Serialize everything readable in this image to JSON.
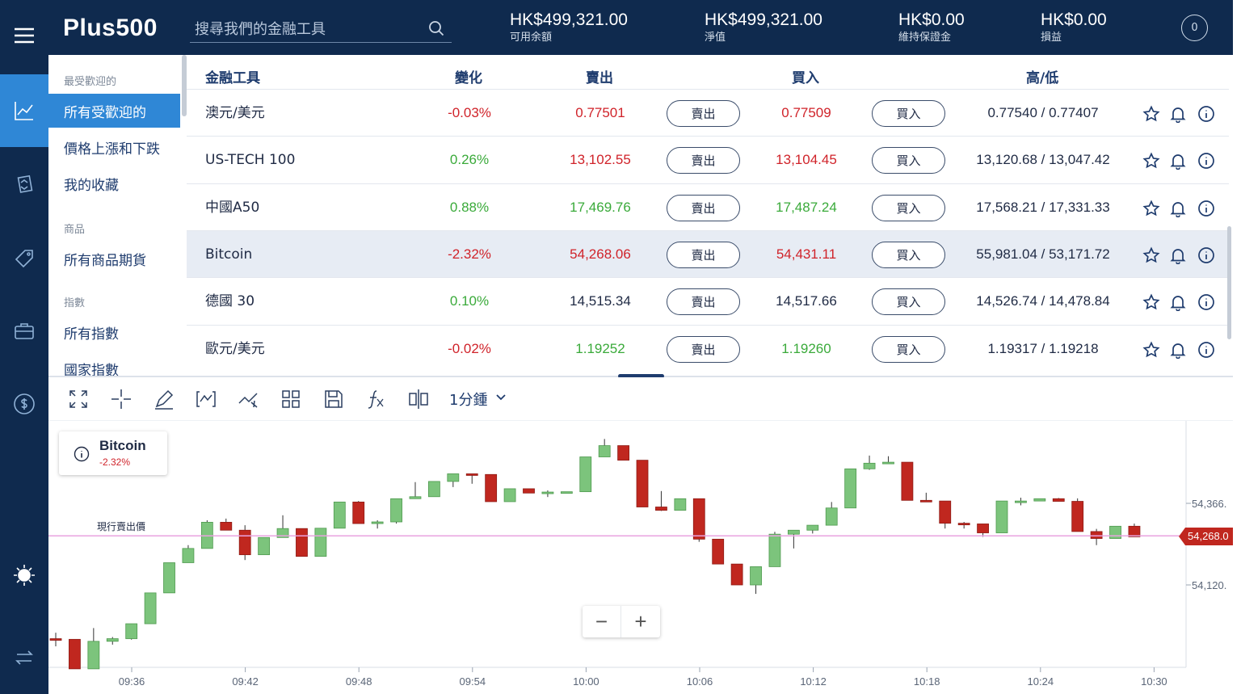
{
  "header": {
    "logo": "Plus500",
    "search_placeholder": "搜尋我們的金融工具",
    "stats": [
      {
        "value": "HK$499,321.00",
        "label": "可用余額"
      },
      {
        "value": "HK$499,321.00",
        "label": "淨值"
      },
      {
        "value": "HK$0.00",
        "label": "維持保證金"
      },
      {
        "value": "HK$0.00",
        "label": "損益"
      }
    ],
    "notification_count": "0"
  },
  "rail": {
    "icons": [
      "menu-icon",
      "chart-icon",
      "swap-doc-icon",
      "tag-icon",
      "briefcase-icon",
      "dollar-icon",
      "brightness-icon",
      "transfer-icon"
    ]
  },
  "categories": {
    "groups": [
      {
        "heading": "最受歡迎的",
        "items": [
          "所有受歡迎的",
          "價格上漲和下跌",
          "我的收藏"
        ]
      },
      {
        "heading": "商品",
        "items": [
          "所有商品期貨"
        ]
      },
      {
        "heading": "指數",
        "items": [
          "所有指數",
          "國家指數"
        ]
      }
    ],
    "active": "所有受歡迎的"
  },
  "table": {
    "headers": {
      "instrument": "金融工具",
      "change": "變化",
      "sell": "賣出",
      "buy": "買入",
      "hilo": "高/低"
    },
    "sell_button": "賣出",
    "buy_button": "買入",
    "rows": [
      {
        "name": "澳元/美元",
        "change": "-0.03%",
        "sell": "0.77501",
        "buy": "0.77509",
        "hilo": "0.77540 / 0.77407",
        "change_color": "red",
        "sell_color": "red",
        "buy_color": "red"
      },
      {
        "name": "US-TECH 100",
        "change": "0.26%",
        "sell": "13,102.55",
        "buy": "13,104.45",
        "hilo": "13,120.68 / 13,047.42",
        "change_color": "green",
        "sell_color": "red",
        "buy_color": "red"
      },
      {
        "name": "中國A50",
        "change": "0.88%",
        "sell": "17,469.76",
        "buy": "17,487.24",
        "hilo": "17,568.21 / 17,331.33",
        "change_color": "green",
        "sell_color": "green",
        "buy_color": "green"
      },
      {
        "name": "Bitcoin",
        "change": "-2.32%",
        "sell": "54,268.06",
        "buy": "54,431.11",
        "hilo": "55,981.04 / 53,171.72",
        "change_color": "red",
        "sell_color": "red",
        "buy_color": "red",
        "highlight": true
      },
      {
        "name": "德國 30",
        "change": "0.10%",
        "sell": "14,515.34",
        "buy": "14,517.66",
        "hilo": "14,526.74 / 14,478.84",
        "change_color": "green",
        "sell_color": "dark",
        "buy_color": "dark"
      },
      {
        "name": "歐元/美元",
        "change": "-0.02%",
        "sell": "1.19252",
        "buy": "1.19260",
        "hilo": "1.19317 / 1.19218",
        "change_color": "red",
        "sell_color": "green",
        "buy_color": "green"
      }
    ]
  },
  "toolbar": {
    "timeframe": "1分鍾",
    "tools": [
      "fullscreen-icon",
      "crosshair-icon",
      "draw-icon",
      "indicator-bracket-icon",
      "trend-icon",
      "layout-grid-icon",
      "save-icon",
      "function-icon",
      "compare-icon"
    ]
  },
  "chart_legend": {
    "name": "Bitcoin",
    "change": "-2.32%"
  },
  "current_sell_label": "現行賣出價",
  "current_price_tag": "54,268.0",
  "zoom": {
    "minus": "−",
    "plus": "+"
  },
  "colors": {
    "up": "#7cc47c",
    "down": "#c0271f",
    "price_line": "#e9a3e0",
    "accent": "#2f87d6",
    "navy": "#0f2a4e"
  },
  "chart_data": {
    "type": "candlestick",
    "title": "",
    "symbol": "Bitcoin",
    "interval": "1分鍾",
    "x_ticks": [
      "09:36",
      "09:42",
      "09:48",
      "09:54",
      "10:00",
      "10:06",
      "10:12",
      "10:18",
      "10:24",
      "10:30"
    ],
    "y_ticks": [
      "54,366.",
      "54,120."
    ],
    "y_tick_values": [
      54366,
      54120
    ],
    "current_price": 54268,
    "start_minute_label": "09:33",
    "minutes_per_tick": 6,
    "candles": [
      [
        53958,
        53956,
        53976,
        53935
      ],
      [
        53956,
        53867,
        53956,
        53867
      ],
      [
        53867,
        53950,
        53990,
        53867
      ],
      [
        53950,
        53958,
        53963,
        53940
      ],
      [
        53958,
        54003,
        54003,
        53955
      ],
      [
        54003,
        54096,
        54096,
        54003
      ],
      [
        54096,
        54187,
        54187,
        54096
      ],
      [
        54187,
        54230,
        54240,
        54187
      ],
      [
        54230,
        54309,
        54315,
        54230
      ],
      [
        54309,
        54285,
        54320,
        54285
      ],
      [
        54285,
        54211,
        54300,
        54195
      ],
      [
        54211,
        54263,
        54263,
        54211
      ],
      [
        54263,
        54290,
        54330,
        54263
      ],
      [
        54290,
        54206,
        54290,
        54206
      ],
      [
        54206,
        54291,
        54291,
        54206
      ],
      [
        54291,
        54370,
        54370,
        54291
      ],
      [
        54370,
        54305,
        54373,
        54305
      ],
      [
        54305,
        54310,
        54315,
        54290
      ],
      [
        54310,
        54380,
        54380,
        54305
      ],
      [
        54380,
        54386,
        54430,
        54380
      ],
      [
        54386,
        54432,
        54432,
        54386
      ],
      [
        54432,
        54455,
        54455,
        54415
      ],
      [
        54455,
        54453,
        54455,
        54425
      ],
      [
        54453,
        54371,
        54453,
        54371
      ],
      [
        54371,
        54410,
        54410,
        54371
      ],
      [
        54410,
        54397,
        54403,
        54397
      ],
      [
        54397,
        54400,
        54405,
        54385
      ],
      [
        54400,
        54401,
        54401,
        54401
      ],
      [
        54401,
        54506,
        54506,
        54401
      ],
      [
        54506,
        54540,
        54560,
        54506
      ],
      [
        54540,
        54496,
        54496,
        54496
      ],
      [
        54496,
        54355,
        54496,
        54355
      ],
      [
        54355,
        54345,
        54403,
        54343
      ],
      [
        54345,
        54380,
        54380,
        54345
      ],
      [
        54380,
        54258,
        54380,
        54250
      ],
      [
        54258,
        54183,
        54258,
        54183
      ],
      [
        54183,
        54120,
        54183,
        54120
      ],
      [
        54120,
        54175,
        54175,
        54093
      ],
      [
        54175,
        54273,
        54280,
        54175
      ],
      [
        54273,
        54285,
        54285,
        54230
      ],
      [
        54285,
        54300,
        54300,
        54275
      ],
      [
        54300,
        54352,
        54370,
        54300
      ],
      [
        54352,
        54470,
        54470,
        54352
      ],
      [
        54470,
        54487,
        54510,
        54467
      ],
      [
        54487,
        54490,
        54508,
        54485
      ],
      [
        54490,
        54375,
        54490,
        54375
      ],
      [
        54375,
        54373,
        54398,
        54373
      ],
      [
        54373,
        54306,
        54373,
        54290
      ],
      [
        54306,
        54304,
        54310,
        54290
      ],
      [
        54304,
        54277,
        54304,
        54265
      ],
      [
        54277,
        54373,
        54373,
        54277
      ],
      [
        54373,
        54373,
        54383,
        54360
      ],
      [
        54373,
        54380,
        54380,
        54373
      ],
      [
        54380,
        54372,
        54382,
        54372
      ],
      [
        54372,
        54281,
        54381,
        54281
      ],
      [
        54281,
        54260,
        54289,
        54240
      ],
      [
        54260,
        54297,
        54297,
        54287
      ],
      [
        54297,
        54265,
        54305,
        54265
      ]
    ]
  }
}
